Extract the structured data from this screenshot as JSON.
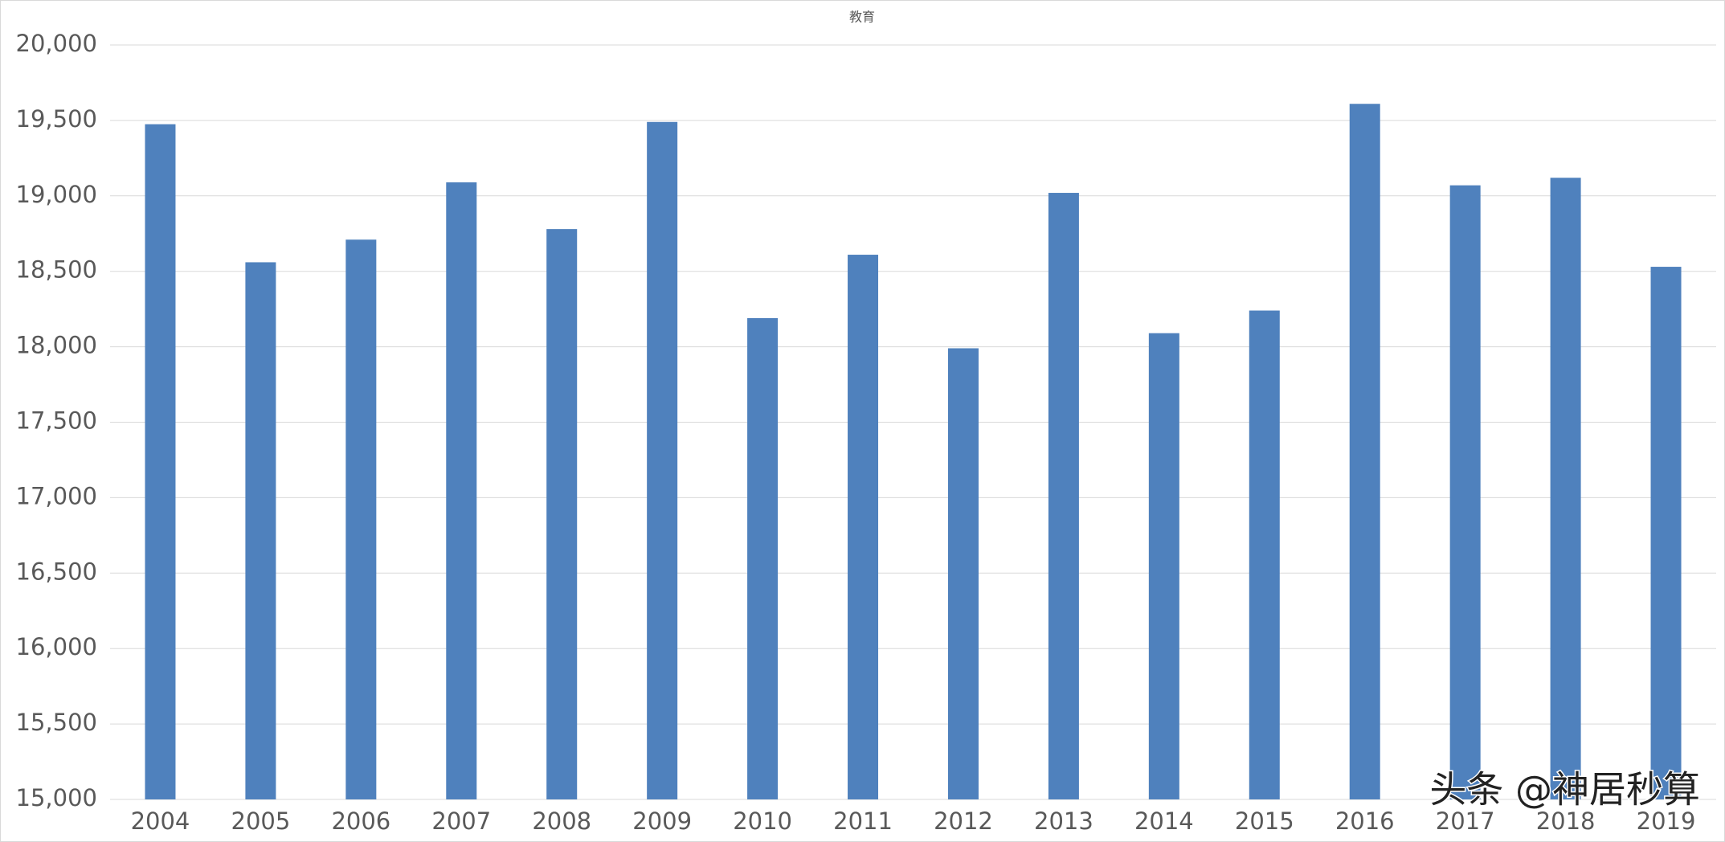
{
  "chart_data": {
    "type": "bar",
    "title": "教育",
    "categories": [
      "2004",
      "2005",
      "2006",
      "2007",
      "2008",
      "2009",
      "2010",
      "2011",
      "2012",
      "2013",
      "2014",
      "2015",
      "2016",
      "2017",
      "2018",
      "2019"
    ],
    "values": [
      19475,
      18560,
      18710,
      19090,
      18780,
      19490,
      18190,
      18610,
      17990,
      19020,
      18090,
      18240,
      19610,
      19070,
      19120,
      18530
    ],
    "color": "#4f81bd",
    "ylim": [
      15000,
      20000
    ],
    "yticks": [
      {
        "value": 15000,
        "label": "15,000"
      },
      {
        "value": 15500,
        "label": "15,500"
      },
      {
        "value": 16000,
        "label": "16,000"
      },
      {
        "value": 16500,
        "label": "16,500"
      },
      {
        "value": 17000,
        "label": "17,000"
      },
      {
        "value": 17500,
        "label": "17,500"
      },
      {
        "value": 18000,
        "label": "18,000"
      },
      {
        "value": 18500,
        "label": "18,500"
      },
      {
        "value": 19000,
        "label": "19,000"
      },
      {
        "value": 19500,
        "label": "19,500"
      },
      {
        "value": 20000,
        "label": "20,000"
      }
    ],
    "grid": true,
    "watermark": "头条 @神居秒算"
  }
}
